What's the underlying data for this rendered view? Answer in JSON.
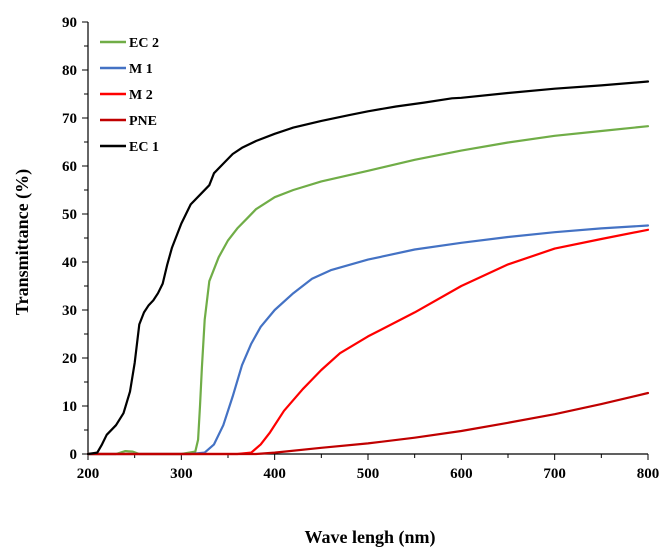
{
  "chart_data": {
    "type": "line",
    "title": "",
    "xlabel": "Wave lengh (nm)",
    "ylabel": "Transmittance (%)",
    "xlim": [
      200,
      800
    ],
    "ylim": [
      0,
      90
    ],
    "x_ticks": [
      200,
      300,
      400,
      500,
      600,
      700,
      800
    ],
    "y_ticks": [
      0,
      10,
      20,
      30,
      40,
      50,
      60,
      70,
      80,
      90
    ],
    "grid": false,
    "legend_position": "top-left",
    "series": [
      {
        "name": "EC 2",
        "color": "#70ad47",
        "points": [
          [
            200,
            0
          ],
          [
            230,
            0
          ],
          [
            240,
            0.6
          ],
          [
            248,
            0.5
          ],
          [
            255,
            0
          ],
          [
            300,
            0
          ],
          [
            315,
            0.5
          ],
          [
            318,
            3
          ],
          [
            320,
            10
          ],
          [
            322,
            18
          ],
          [
            325,
            28
          ],
          [
            330,
            36
          ],
          [
            340,
            41
          ],
          [
            350,
            44.5
          ],
          [
            360,
            47
          ],
          [
            370,
            49
          ],
          [
            380,
            51
          ],
          [
            400,
            53.5
          ],
          [
            420,
            55
          ],
          [
            450,
            56.8
          ],
          [
            500,
            59
          ],
          [
            550,
            61.3
          ],
          [
            600,
            63.2
          ],
          [
            650,
            64.9
          ],
          [
            700,
            66.3
          ],
          [
            750,
            67.3
          ],
          [
            800,
            68.3
          ]
        ]
      },
      {
        "name": "M 1",
        "color": "#4472c4",
        "points": [
          [
            200,
            0
          ],
          [
            310,
            0
          ],
          [
            325,
            0.3
          ],
          [
            335,
            2
          ],
          [
            345,
            6
          ],
          [
            355,
            12
          ],
          [
            365,
            18.5
          ],
          [
            375,
            23
          ],
          [
            385,
            26.5
          ],
          [
            400,
            30
          ],
          [
            420,
            33.5
          ],
          [
            440,
            36.5
          ],
          [
            460,
            38.3
          ],
          [
            500,
            40.5
          ],
          [
            550,
            42.6
          ],
          [
            600,
            44
          ],
          [
            650,
            45.2
          ],
          [
            700,
            46.2
          ],
          [
            750,
            47
          ],
          [
            800,
            47.6
          ]
        ]
      },
      {
        "name": "M 2",
        "color": "#ff0000",
        "points": [
          [
            200,
            0
          ],
          [
            360,
            0
          ],
          [
            375,
            0.3
          ],
          [
            385,
            2
          ],
          [
            395,
            4.5
          ],
          [
            410,
            9
          ],
          [
            430,
            13.5
          ],
          [
            450,
            17.5
          ],
          [
            470,
            21
          ],
          [
            500,
            24.5
          ],
          [
            550,
            29.5
          ],
          [
            600,
            35
          ],
          [
            650,
            39.5
          ],
          [
            700,
            42.8
          ],
          [
            750,
            44.8
          ],
          [
            800,
            46.7
          ]
        ]
      },
      {
        "name": "PNE",
        "color": "#c00000",
        "points": [
          [
            200,
            0
          ],
          [
            380,
            0
          ],
          [
            400,
            0.3
          ],
          [
            450,
            1.3
          ],
          [
            500,
            2.2
          ],
          [
            550,
            3.4
          ],
          [
            600,
            4.8
          ],
          [
            650,
            6.5
          ],
          [
            700,
            8.3
          ],
          [
            750,
            10.4
          ],
          [
            800,
            12.7
          ]
        ]
      },
      {
        "name": "EC 1",
        "color": "#000000",
        "points": [
          [
            200,
            0
          ],
          [
            210,
            0.3
          ],
          [
            215,
            2
          ],
          [
            220,
            4
          ],
          [
            230,
            6
          ],
          [
            238,
            8.5
          ],
          [
            245,
            13
          ],
          [
            250,
            19
          ],
          [
            255,
            27
          ],
          [
            260,
            29.5
          ],
          [
            265,
            31
          ],
          [
            270,
            32
          ],
          [
            275,
            33.5
          ],
          [
            280,
            35.5
          ],
          [
            285,
            39.5
          ],
          [
            290,
            43
          ],
          [
            300,
            48
          ],
          [
            310,
            52
          ],
          [
            320,
            54
          ],
          [
            330,
            56
          ],
          [
            335,
            58.5
          ],
          [
            345,
            60.5
          ],
          [
            355,
            62.5
          ],
          [
            365,
            63.8
          ],
          [
            380,
            65.2
          ],
          [
            400,
            66.7
          ],
          [
            420,
            68
          ],
          [
            450,
            69.4
          ],
          [
            480,
            70.6
          ],
          [
            500,
            71.4
          ],
          [
            530,
            72.4
          ],
          [
            560,
            73.2
          ],
          [
            590,
            74.1
          ],
          [
            600,
            74.2
          ],
          [
            650,
            75.2
          ],
          [
            700,
            76.1
          ],
          [
            750,
            76.8
          ],
          [
            800,
            77.6
          ]
        ]
      }
    ]
  }
}
